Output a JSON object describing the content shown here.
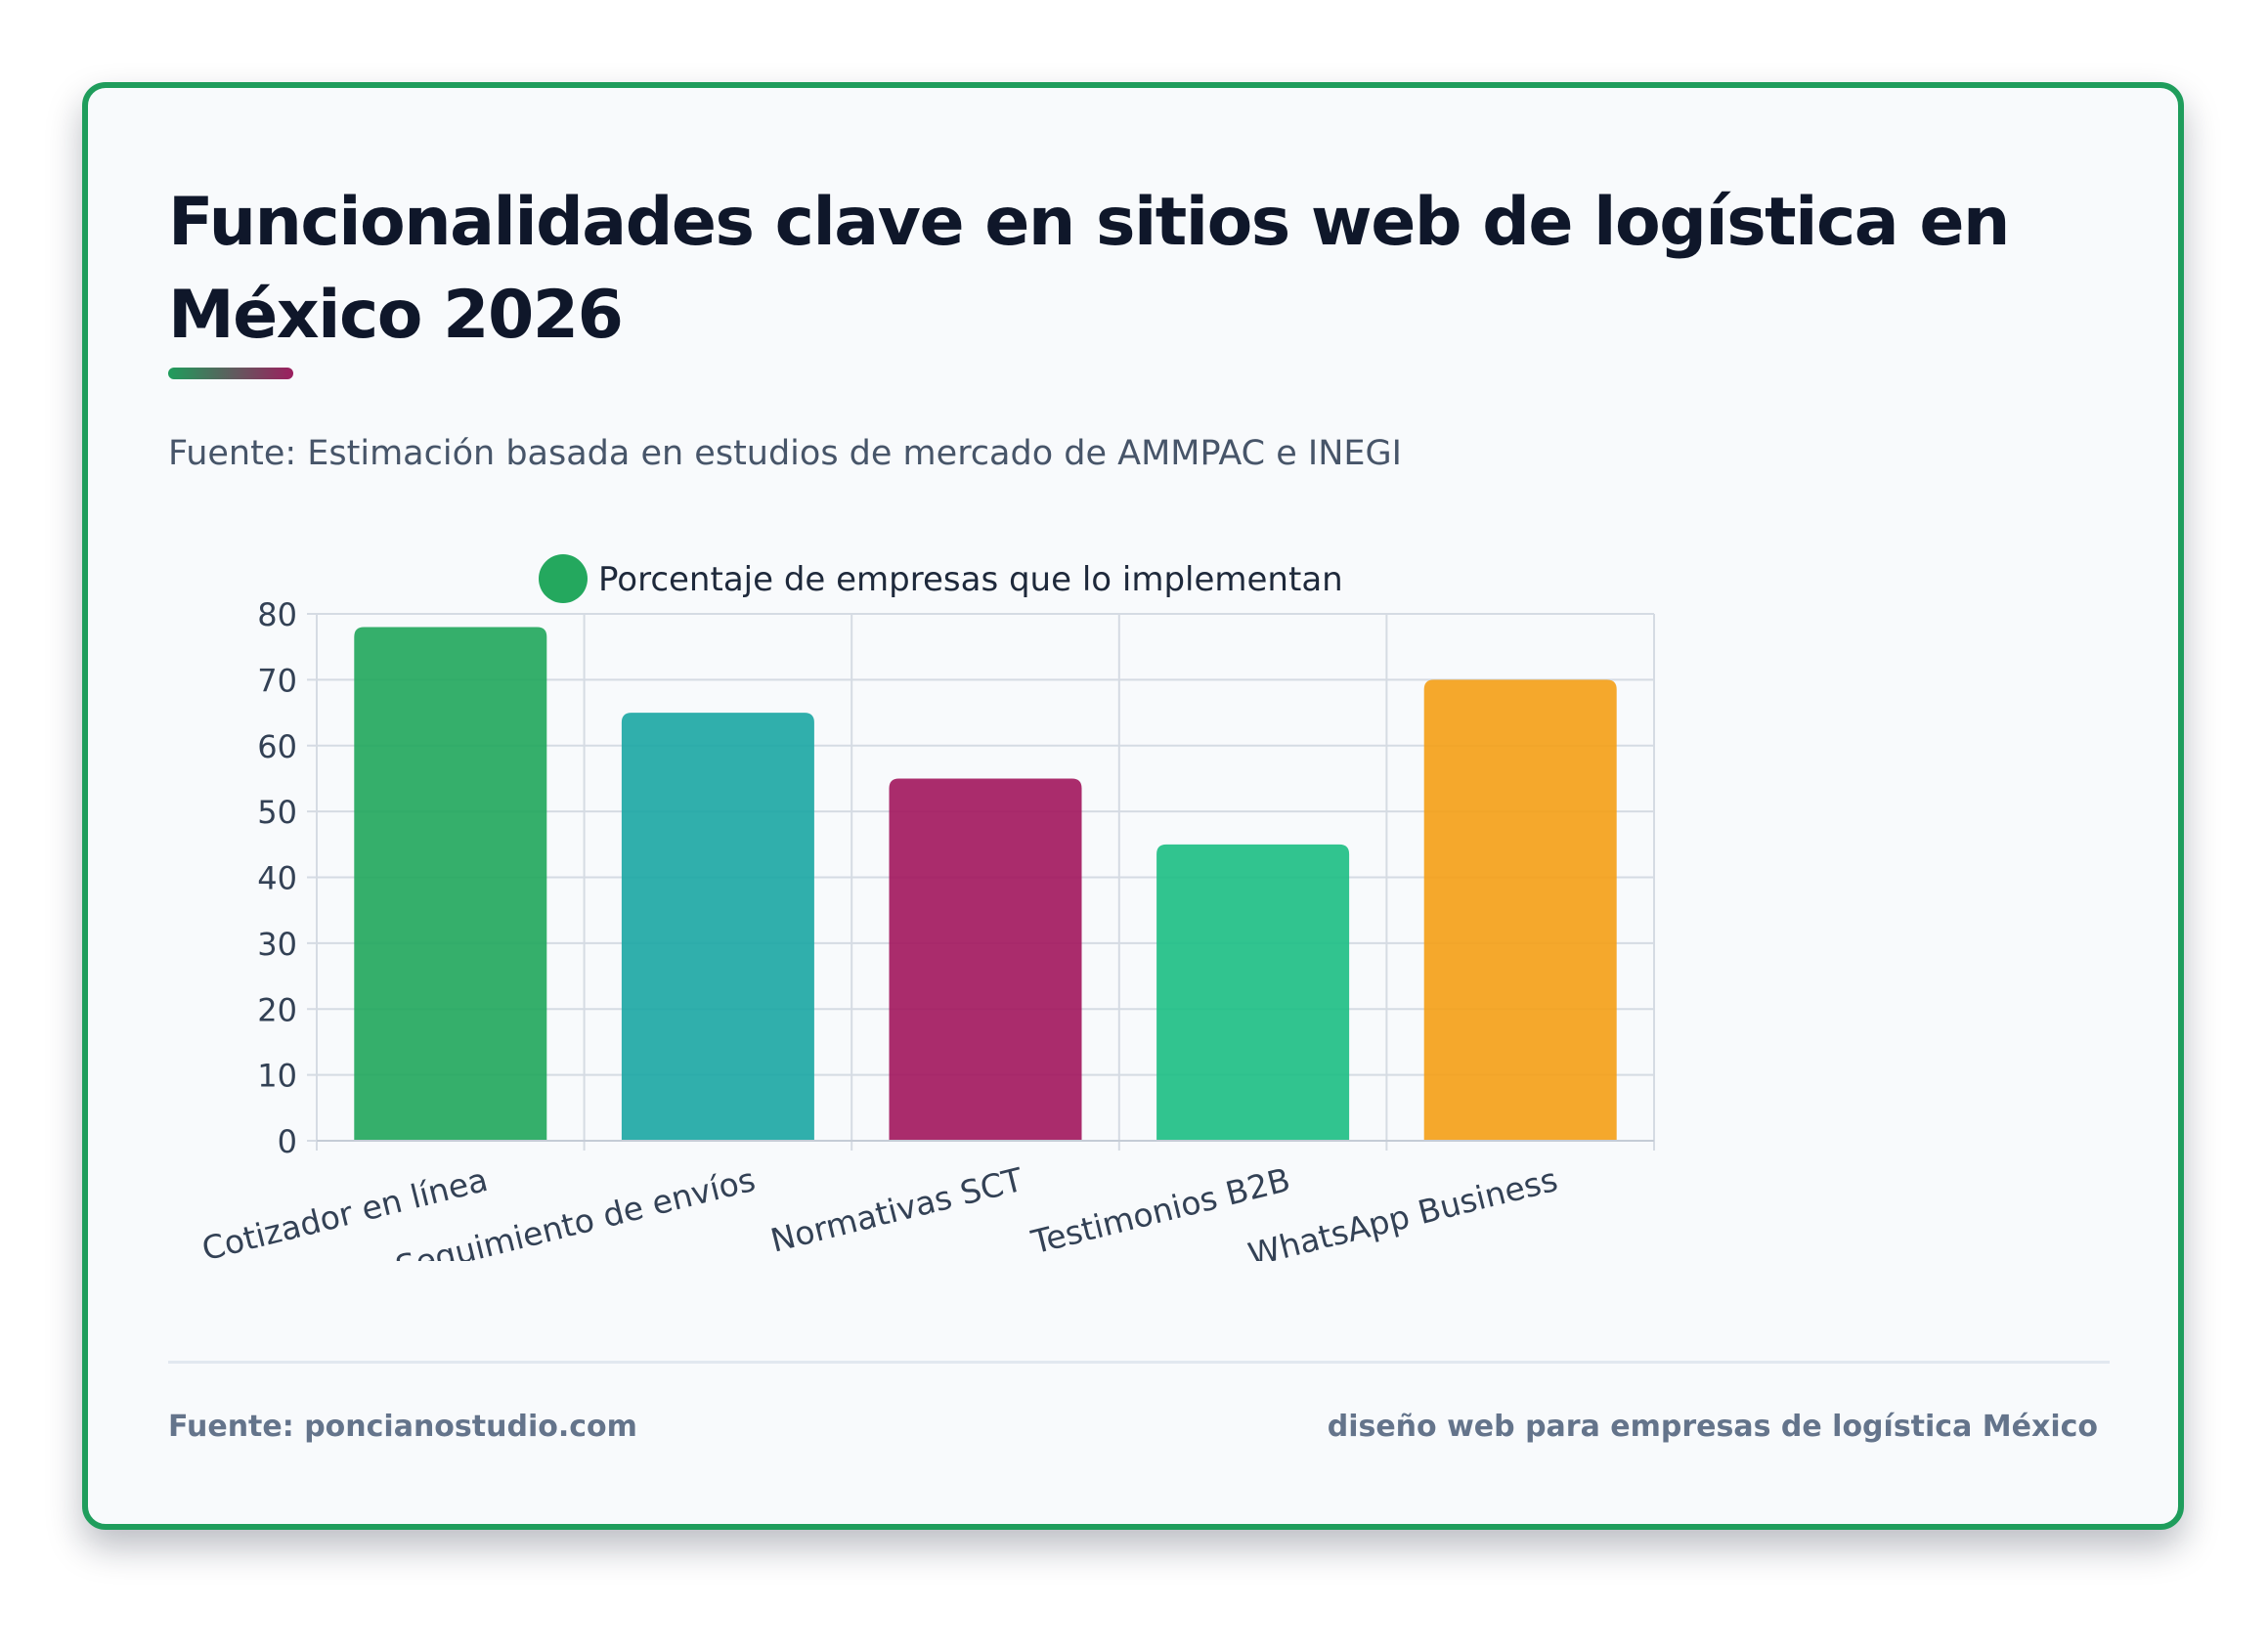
{
  "title": "Funcionalidades clave en sitios web de logística en México 2026",
  "subtitle": "Fuente: Estimación basada en estudios de mercado de AMMPAC e INEGI",
  "footer": {
    "source": "Fuente: poncianostudio.com",
    "tagline": "diseño web para empresas de logística México"
  },
  "colors": {
    "card_border": "#1f9d5c",
    "title": "#0f172a"
  },
  "chart_data": {
    "type": "bar",
    "legend_position": "top",
    "grid": true,
    "ylim": [
      0,
      80
    ],
    "yticks": [
      0,
      10,
      20,
      30,
      40,
      50,
      60,
      70,
      80
    ],
    "categories": [
      "Cotizador en línea",
      "Seguimiento de envíos",
      "Normativas SCT",
      "Testimonios B2B",
      "WhatsApp Business"
    ],
    "series": [
      {
        "name": "Porcentaje de empresas que lo implementan",
        "values": [
          78,
          65,
          55,
          45,
          70
        ],
        "colors": [
          "#24a85e",
          "#1ea8a5",
          "#a31a60",
          "#1fbf85",
          "#f4a11a"
        ],
        "legend_color": "#24a85e"
      }
    ]
  }
}
